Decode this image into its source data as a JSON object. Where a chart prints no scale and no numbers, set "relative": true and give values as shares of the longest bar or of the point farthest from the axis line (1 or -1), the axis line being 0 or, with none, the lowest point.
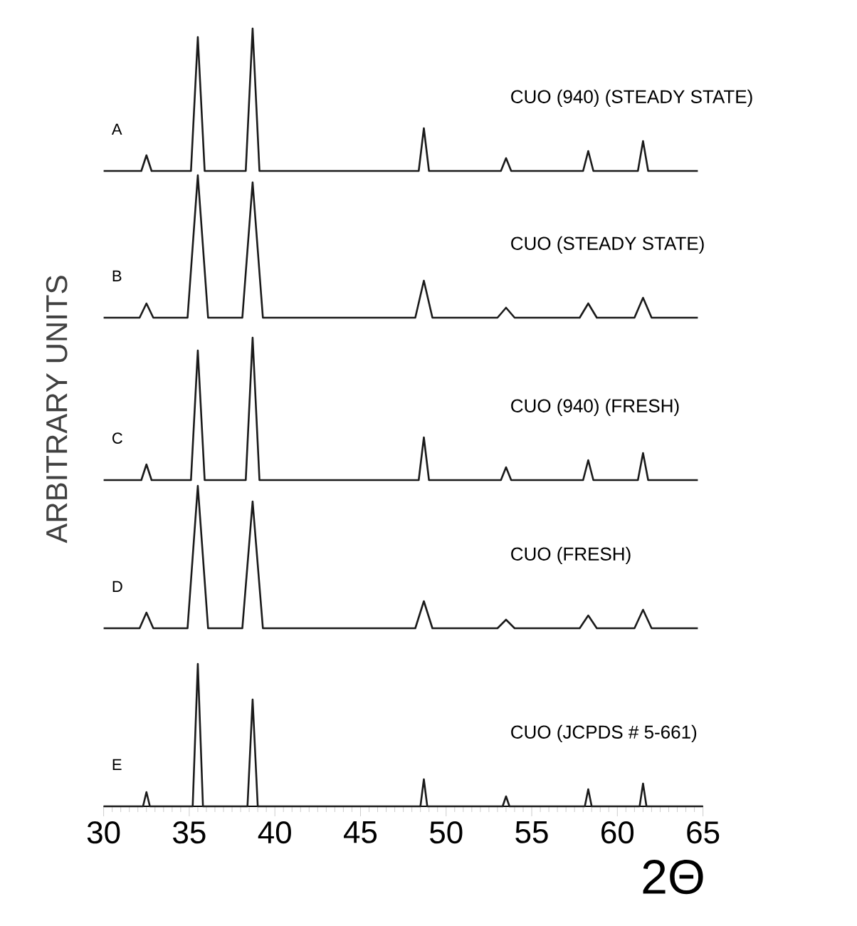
{
  "chart_data": [
    {
      "type": "line",
      "relative": true,
      "title": "CUO (940)   (STEADY STATE)",
      "annotations": [
        "A"
      ],
      "color": "#1a1a1a",
      "xlim": [
        30,
        65
      ],
      "tick_labels": false,
      "x": [
        30,
        32.2,
        32.5,
        32.8,
        35.1,
        35.5,
        35.9,
        38.3,
        38.7,
        39.1,
        48.4,
        48.7,
        49.0,
        53.2,
        53.5,
        53.8,
        58.0,
        58.3,
        58.6,
        61.2,
        61.5,
        61.8,
        64.7
      ],
      "values": [
        0,
        0,
        0.11,
        0,
        0,
        0.94,
        0,
        0,
        1,
        0,
        0,
        0.3,
        0,
        0,
        0.09,
        0,
        0,
        0.14,
        0,
        0,
        0.21,
        0,
        0
      ]
    },
    {
      "type": "line",
      "relative": true,
      "title": "CUO  (STEADY STATE)",
      "annotations": [
        "B"
      ],
      "color": "#1a1a1a",
      "xlim": [
        30,
        65
      ],
      "tick_labels": false,
      "x": [
        30,
        32.1,
        32.5,
        32.9,
        34.9,
        35.5,
        36.1,
        38.1,
        38.7,
        39.3,
        48.2,
        48.7,
        49.2,
        53.0,
        53.5,
        54.0,
        57.8,
        58.3,
        58.8,
        61.0,
        61.5,
        62.0,
        64.7
      ],
      "values": [
        0,
        0,
        0.1,
        0,
        0,
        1,
        0,
        0,
        0.95,
        0,
        0,
        0.26,
        0,
        0,
        0.07,
        0,
        0,
        0.1,
        0,
        0,
        0.14,
        0,
        0
      ]
    },
    {
      "type": "line",
      "relative": true,
      "title": "CUO (940)    (FRESH)",
      "annotations": [
        "C"
      ],
      "ylabel": "ARBITRARY UNITS",
      "color": "#1a1a1a",
      "xlim": [
        30,
        65
      ],
      "tick_labels": false,
      "x": [
        30,
        32.2,
        32.5,
        32.8,
        35.1,
        35.5,
        35.9,
        38.3,
        38.7,
        39.1,
        48.4,
        48.7,
        49.0,
        53.2,
        53.5,
        53.8,
        58.0,
        58.3,
        58.6,
        61.2,
        61.5,
        61.8,
        64.7
      ],
      "values": [
        0,
        0,
        0.11,
        0,
        0,
        0.91,
        0,
        0,
        1,
        0,
        0,
        0.3,
        0,
        0,
        0.09,
        0,
        0,
        0.14,
        0,
        0,
        0.19,
        0,
        0
      ]
    },
    {
      "type": "line",
      "relative": true,
      "title": "CUO  (FRESH)",
      "annotations": [
        "D"
      ],
      "color": "#1a1a1a",
      "xlim": [
        30,
        65
      ],
      "tick_labels": false,
      "x": [
        30,
        32.1,
        32.5,
        32.9,
        34.9,
        35.5,
        36.1,
        38.1,
        38.7,
        39.3,
        48.2,
        48.7,
        49.2,
        53.0,
        53.5,
        54.0,
        57.8,
        58.3,
        58.8,
        61.0,
        61.5,
        62.0,
        64.7
      ],
      "values": [
        0,
        0,
        0.11,
        0,
        0,
        1,
        0,
        0,
        0.89,
        0,
        0,
        0.19,
        0,
        0,
        0.06,
        0,
        0,
        0.09,
        0,
        0,
        0.13,
        0,
        0
      ]
    },
    {
      "type": "line",
      "relative": true,
      "title": "CUO  (JCPDS # 5-661)",
      "annotations": [
        "E"
      ],
      "xlabel": "2Θ",
      "color": "#1a1a1a",
      "xlim": [
        30,
        65
      ],
      "xticks": [
        30,
        35,
        40,
        45,
        50,
        55,
        60,
        65
      ],
      "tick_labels": "x",
      "x": [
        30,
        32.3,
        32.5,
        32.7,
        35.2,
        35.5,
        35.8,
        38.4,
        38.7,
        39.0,
        48.5,
        48.7,
        48.9,
        53.3,
        53.5,
        53.7,
        58.1,
        58.3,
        58.5,
        61.3,
        61.5,
        61.7,
        65
      ],
      "values": [
        0,
        0,
        0.1,
        0,
        0,
        1,
        0,
        0,
        0.75,
        0,
        0,
        0.19,
        0,
        0,
        0.07,
        0,
        0,
        0.12,
        0,
        0,
        0.16,
        0,
        0
      ]
    }
  ]
}
